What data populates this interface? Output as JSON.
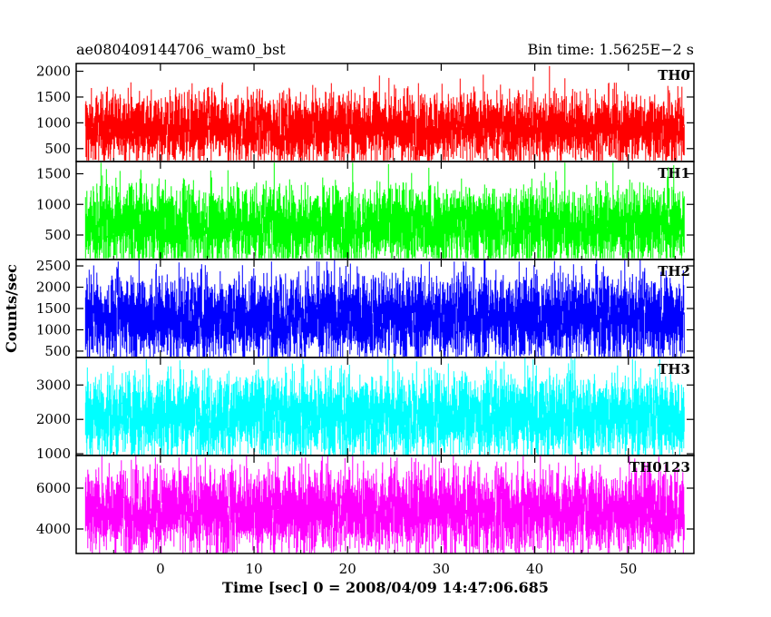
{
  "header": {
    "title": "ae080409144706_wam0_bst",
    "bin_time": "Bin time: 1.5625E−2 s"
  },
  "axes": {
    "ylabel": "Counts/sec",
    "xlabel": "Time [sec] 0 = 2008/04/09 14:47:06.685"
  },
  "chart_data": {
    "type": "line",
    "title": "ae080409144706_wam0_bst",
    "xlabel": "Time [sec] 0 = 2008/04/09 14:47:06.685",
    "ylabel": "Counts/sec",
    "xlim": [
      -9,
      57
    ],
    "x_ticks": [
      0,
      10,
      20,
      30,
      40,
      50
    ],
    "x_tick_labels": [
      "0",
      "10",
      "20",
      "30",
      "40",
      "50"
    ],
    "data_x_range": [
      -8,
      56
    ],
    "bin_time_s": 0.015625,
    "panels": [
      {
        "name": "TH0",
        "color": "#ff0000",
        "ylim": [
          250,
          2150
        ],
        "ticks": [
          500,
          1000,
          1500,
          2000
        ],
        "tick_labels": [
          "500",
          "1000",
          "1500",
          "2000"
        ],
        "mean": 900,
        "typical_low": 350,
        "typical_high": 1500,
        "max": 2100
      },
      {
        "name": "TH1",
        "color": "#00ff00",
        "ylim": [
          100,
          1700
        ],
        "ticks": [
          500,
          1000,
          1500
        ],
        "tick_labels": [
          "500",
          "1000",
          "1500"
        ],
        "mean": 650,
        "typical_low": 200,
        "typical_high": 1300,
        "max": 1680
      },
      {
        "name": "TH2",
        "color": "#0000ff",
        "ylim": [
          350,
          2650
        ],
        "ticks": [
          500,
          1000,
          1500,
          2000,
          2500
        ],
        "tick_labels": [
          "500",
          "1000",
          "1500",
          "2000",
          "2500"
        ],
        "mean": 1300,
        "typical_low": 500,
        "typical_high": 2200,
        "max": 2600
      },
      {
        "name": "TH3",
        "color": "#00ffff",
        "ylim": [
          950,
          3800
        ],
        "ticks": [
          1000,
          2000,
          3000
        ],
        "tick_labels": [
          "1000",
          "2000",
          "3000"
        ],
        "mean": 2100,
        "typical_low": 1150,
        "typical_high": 3200,
        "max": 3750
      },
      {
        "name": "TH0123",
        "color": "#ff00ff",
        "ylim": [
          2800,
          7600
        ],
        "ticks": [
          4000,
          6000
        ],
        "tick_labels": [
          "4000",
          "6000"
        ],
        "mean": 4900,
        "typical_low": 3200,
        "typical_high": 6700,
        "max": 7500
      }
    ]
  }
}
